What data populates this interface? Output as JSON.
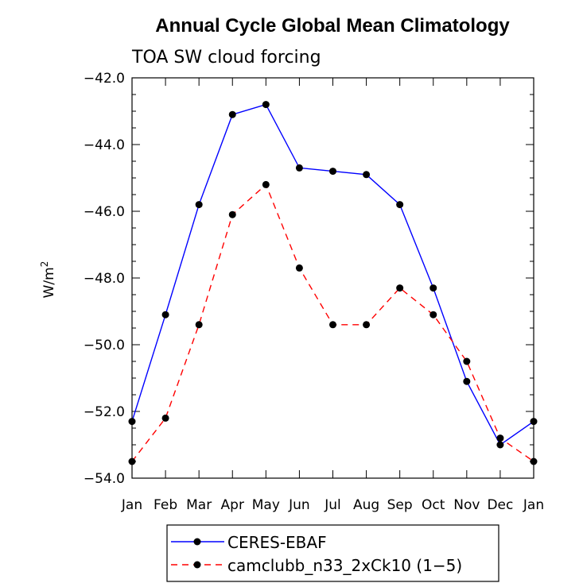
{
  "chart_data": {
    "type": "line",
    "title": "Annual Cycle Global Mean Climatology",
    "subtitle": "TOA SW cloud forcing",
    "xlabel": "",
    "ylabel": "W/m",
    "ylabel_superscript": "2",
    "categories": [
      "Jan",
      "Feb",
      "Mar",
      "Apr",
      "May",
      "Jun",
      "Jul",
      "Aug",
      "Sep",
      "Oct",
      "Nov",
      "Dec",
      "Jan"
    ],
    "ylim": [
      -54.0,
      -42.0
    ],
    "yticks": [
      -42.0,
      -44.0,
      -46.0,
      -48.0,
      -50.0,
      -52.0,
      -54.0
    ],
    "ytick_labels": [
      "−42.0",
      "−44.0",
      "−46.0",
      "−48.0",
      "−50.0",
      "−52.0",
      "−54.0"
    ],
    "series": [
      {
        "name": "CERES-EBAF",
        "color": "#0000ff",
        "dash": "solid",
        "values": [
          -52.3,
          -49.1,
          -45.8,
          -43.1,
          -42.8,
          -44.7,
          -44.8,
          -44.9,
          -45.8,
          -48.3,
          -51.1,
          -53.0,
          -52.3
        ]
      },
      {
        "name": "camclubb_n33_2xCk10 (1−5)",
        "color": "#ff0000",
        "dash": "dashed",
        "values": [
          -53.5,
          -52.2,
          -49.4,
          -46.1,
          -45.2,
          -47.7,
          -49.4,
          -49.4,
          -48.3,
          -49.1,
          -50.5,
          -52.8,
          -53.5
        ]
      }
    ],
    "marker_color": "#000000",
    "legend_position": "bottom-center"
  }
}
